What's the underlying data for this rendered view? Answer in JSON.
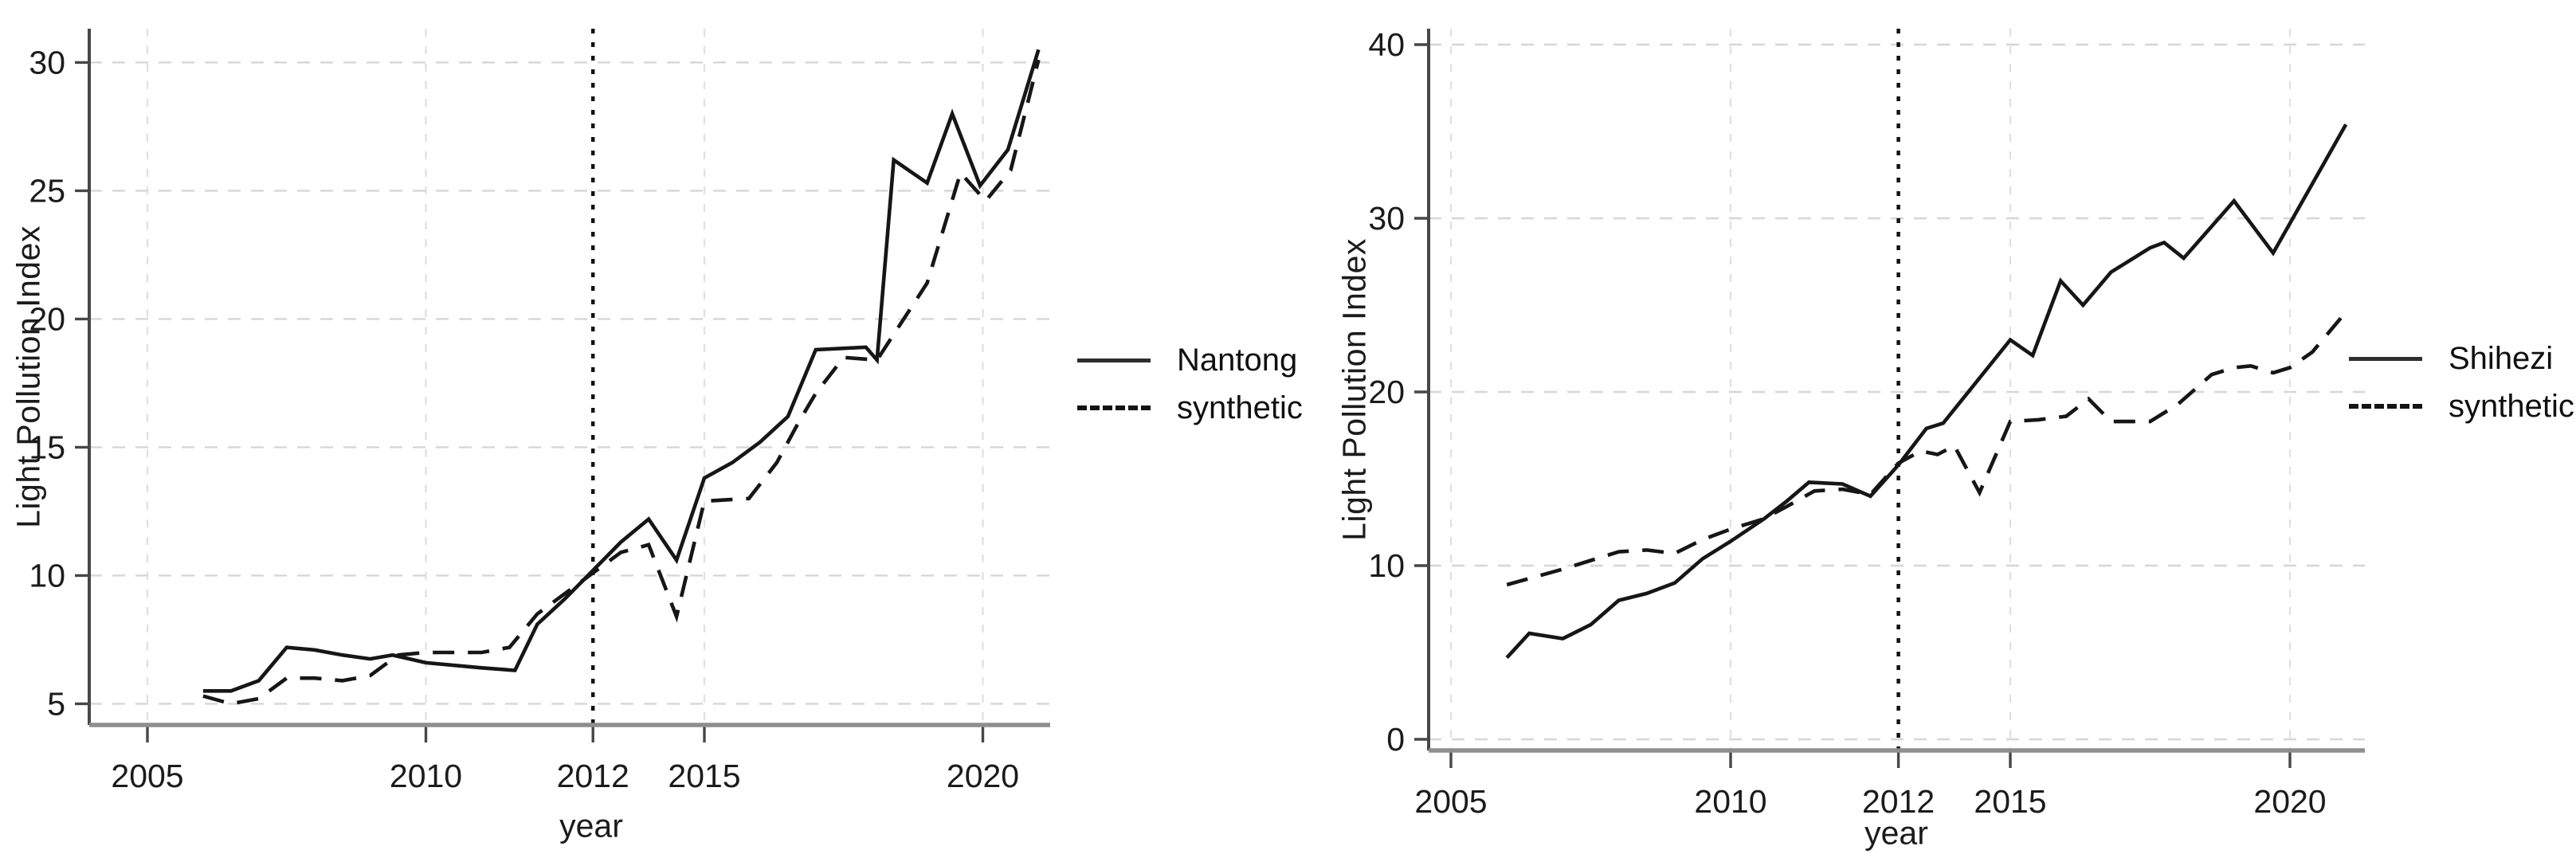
{
  "page": {
    "background": "#ffffff",
    "figure_type": "synthetic control comparison, two panels"
  },
  "colors": {
    "line": "#161616",
    "grid": "#d6d6d6",
    "vgrid": "#e0e0e0",
    "spine": "#474747",
    "baseline": "#8e8e8e",
    "text": "#1b1b1b"
  },
  "chart_data": [
    {
      "type": "line",
      "title": "",
      "ylabel": "Light Pollution Index",
      "xlabel": "year",
      "xtick_labels": [
        "2005",
        "2010",
        "2012",
        "2015",
        "2020"
      ],
      "ytick_labels": [
        "5",
        "10",
        "15",
        "20",
        "25",
        "30"
      ],
      "xlim": [
        2004,
        2021.3
      ],
      "ylim": [
        4.2,
        31.2
      ],
      "grid": true,
      "legend_position": "right",
      "vline": {
        "label": "2012",
        "style": "dotted"
      },
      "series": [
        {
          "name": "Nantong",
          "style": "solid",
          "points": [
            [
              2006,
              5.5
            ],
            [
              2006.5,
              5.5
            ],
            [
              2007,
              5.9
            ],
            [
              2007.5,
              7.2
            ],
            [
              2008,
              7.1
            ],
            [
              2008.5,
              6.9
            ],
            [
              2009,
              6.75
            ],
            [
              2009.4,
              6.9
            ],
            [
              2010,
              6.6
            ],
            [
              2011,
              6.4
            ],
            [
              2011.6,
              6.3
            ],
            [
              2012,
              8.1
            ],
            [
              2012.5,
              9.1
            ],
            [
              2013,
              10.2
            ],
            [
              2013.5,
              11.3
            ],
            [
              2014,
              12.2
            ],
            [
              2014.5,
              10.6
            ],
            [
              2015,
              13.8
            ],
            [
              2015.5,
              14.4
            ],
            [
              2016,
              15.2
            ],
            [
              2016.5,
              16.2
            ],
            [
              2017,
              18.8
            ],
            [
              2017.9,
              18.9
            ],
            [
              2018.1,
              18.4
            ],
            [
              2018.4,
              26.2
            ],
            [
              2019,
              25.3
            ],
            [
              2019.45,
              28.0
            ],
            [
              2019.95,
              25.2
            ],
            [
              2020.45,
              26.6
            ],
            [
              2021,
              30.5
            ]
          ]
        },
        {
          "name": "synthetic",
          "style": "dashed",
          "points": [
            [
              2006,
              5.3
            ],
            [
              2006.5,
              5.0
            ],
            [
              2007,
              5.2
            ],
            [
              2007.5,
              6.0
            ],
            [
              2008,
              6.0
            ],
            [
              2008.5,
              5.9
            ],
            [
              2009,
              6.1
            ],
            [
              2009.5,
              6.9
            ],
            [
              2010,
              7.0
            ],
            [
              2011,
              7.0
            ],
            [
              2011.5,
              7.2
            ],
            [
              2012,
              8.5
            ],
            [
              2012.5,
              9.3
            ],
            [
              2013,
              10.1
            ],
            [
              2013.5,
              10.9
            ],
            [
              2014,
              11.2
            ],
            [
              2014.5,
              8.4
            ],
            [
              2015,
              12.9
            ],
            [
              2015.8,
              13.0
            ],
            [
              2016.3,
              14.4
            ],
            [
              2016.7,
              16.0
            ],
            [
              2017,
              17.1
            ],
            [
              2017.5,
              18.5
            ],
            [
              2018.1,
              18.4
            ],
            [
              2019,
              21.4
            ],
            [
              2019.6,
              25.7
            ],
            [
              2020.05,
              24.6
            ],
            [
              2020.5,
              25.8
            ],
            [
              2021,
              30.1
            ]
          ]
        }
      ]
    },
    {
      "type": "line",
      "title": "",
      "ylabel": "Light Pollution Index",
      "xlabel": "year",
      "xtick_labels": [
        "2005",
        "2010",
        "2012",
        "2015",
        "2020"
      ],
      "ytick_labels": [
        "0",
        "10",
        "20",
        "30",
        "40"
      ],
      "xlim": [
        2004.6,
        2021.3
      ],
      "ylim": [
        -0.6,
        41.4
      ],
      "grid": true,
      "legend_position": "right",
      "vline": {
        "label": "2012",
        "style": "dotted"
      },
      "series": [
        {
          "name": "Shihezi",
          "style": "solid",
          "points": [
            [
              2006,
              4.7
            ],
            [
              2006.4,
              6.1
            ],
            [
              2007,
              5.8
            ],
            [
              2007.5,
              6.6
            ],
            [
              2008,
              8.0
            ],
            [
              2008.5,
              8.4
            ],
            [
              2009,
              9.0
            ],
            [
              2009.5,
              10.4
            ],
            [
              2010,
              11.4
            ],
            [
              2010.6,
              12.7
            ],
            [
              2011,
              13.7
            ],
            [
              2011.4,
              14.8
            ],
            [
              2012,
              14.7
            ],
            [
              2012.5,
              14.0
            ],
            [
              2013,
              15.8
            ],
            [
              2013.5,
              17.9
            ],
            [
              2013.8,
              18.2
            ],
            [
              2015,
              23.0
            ],
            [
              2015.4,
              22.1
            ],
            [
              2015.9,
              26.4
            ],
            [
              2016.3,
              25.0
            ],
            [
              2016.8,
              26.9
            ],
            [
              2017.5,
              28.3
            ],
            [
              2017.75,
              28.6
            ],
            [
              2018.1,
              27.7
            ],
            [
              2019,
              31.0
            ],
            [
              2019.7,
              28.0
            ],
            [
              2021,
              35.4
            ]
          ]
        },
        {
          "name": "synthetic",
          "style": "dashed",
          "points": [
            [
              2006,
              8.9
            ],
            [
              2007,
              9.8
            ],
            [
              2007.5,
              10.3
            ],
            [
              2008,
              10.8
            ],
            [
              2008.5,
              10.9
            ],
            [
              2009,
              10.7
            ],
            [
              2009.5,
              11.5
            ],
            [
              2010,
              12.1
            ],
            [
              2010.6,
              12.7
            ],
            [
              2011,
              13.4
            ],
            [
              2011.5,
              14.3
            ],
            [
              2012,
              14.4
            ],
            [
              2012.5,
              14.1
            ],
            [
              2013,
              15.9
            ],
            [
              2013.4,
              16.6
            ],
            [
              2013.7,
              16.4
            ],
            [
              2014,
              16.9
            ],
            [
              2014.45,
              14.2
            ],
            [
              2015,
              18.3
            ],
            [
              2015.5,
              18.4
            ],
            [
              2016,
              18.6
            ],
            [
              2016.4,
              19.6
            ],
            [
              2016.8,
              18.3
            ],
            [
              2017.5,
              18.3
            ],
            [
              2018,
              19.3
            ],
            [
              2018.6,
              21.0
            ],
            [
              2019,
              21.4
            ],
            [
              2019.3,
              21.5
            ],
            [
              2019.7,
              21.1
            ],
            [
              2020,
              21.4
            ],
            [
              2020.4,
              22.3
            ],
            [
              2021,
              24.6
            ]
          ]
        }
      ]
    }
  ]
}
